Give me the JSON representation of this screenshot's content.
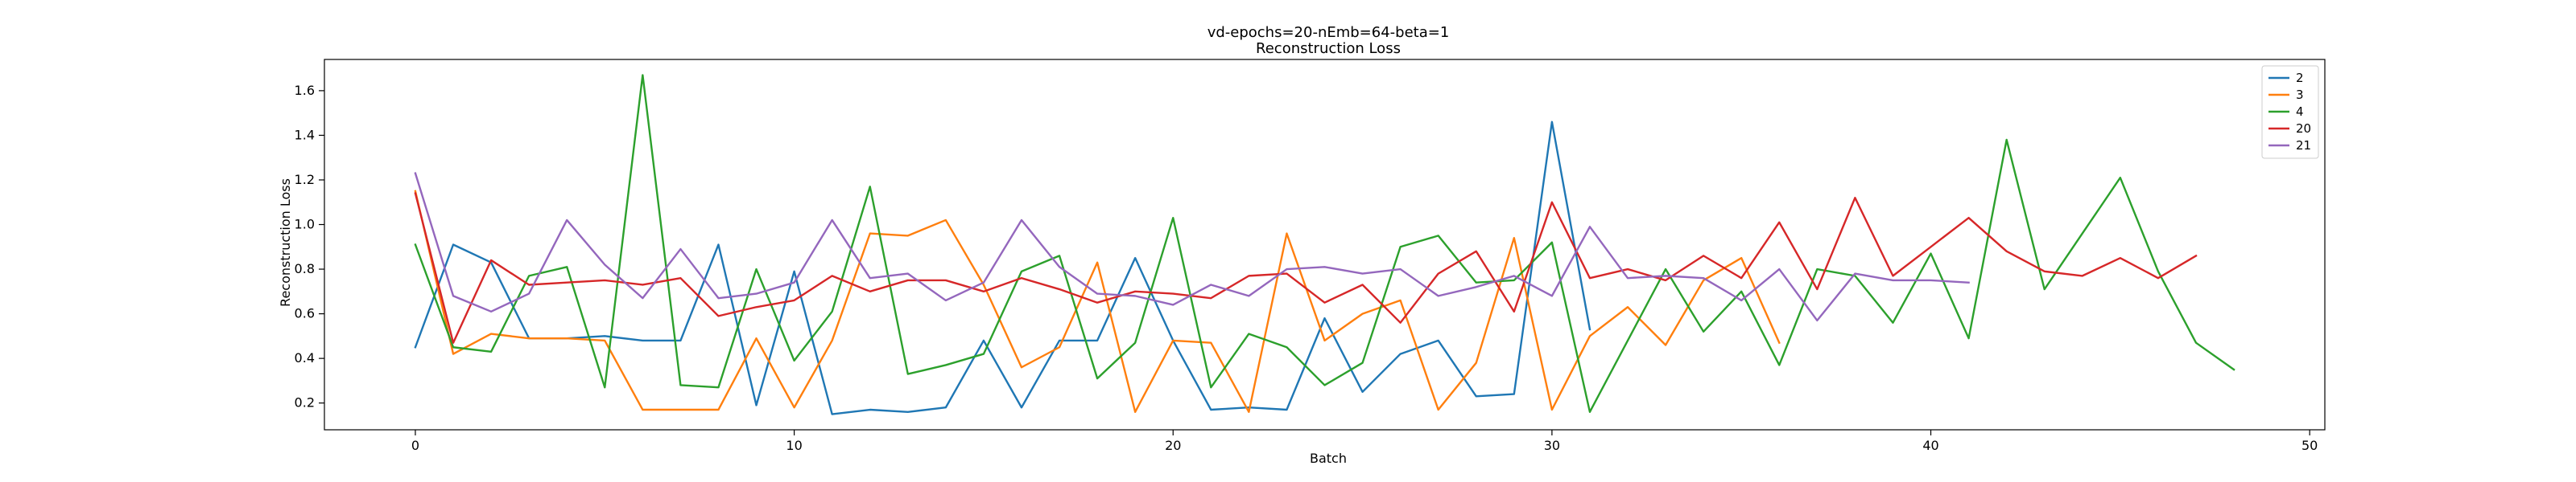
{
  "chart_data": {
    "type": "line",
    "title": "vd-epochs=20-nEmb=64-beta=1",
    "subtitle": "Reconstruction Loss",
    "xlabel": "Batch",
    "ylabel": "Reconstruction Loss",
    "xlim": [
      -2.4,
      50.4
    ],
    "ylim": [
      0.08,
      1.74
    ],
    "xticks": [
      0,
      10,
      20,
      30,
      40,
      50
    ],
    "yticks": [
      0.2,
      0.4,
      0.6,
      0.8,
      1.0,
      1.2,
      1.4,
      1.6
    ],
    "ytick_labels": [
      "0.2",
      "0.4",
      "0.6",
      "0.8",
      "1.0",
      "1.2",
      "1.4",
      "1.6"
    ],
    "grid": false,
    "legend_position": "top-right",
    "series": [
      {
        "name": "2",
        "color": "#1f77b4",
        "values": [
          0.45,
          0.91,
          0.83,
          0.49,
          0.49,
          0.5,
          0.48,
          0.48,
          0.91,
          0.19,
          0.79,
          0.15,
          0.17,
          0.16,
          0.18,
          0.48,
          0.18,
          0.48,
          0.48,
          0.85,
          0.48,
          0.17,
          0.18,
          0.17,
          0.58,
          0.25,
          0.42,
          0.48,
          0.23,
          0.24,
          1.46,
          0.53
        ]
      },
      {
        "name": "3",
        "color": "#ff7f0e",
        "values": [
          1.15,
          0.42,
          0.51,
          0.49,
          0.49,
          0.48,
          0.17,
          0.17,
          0.17,
          0.49,
          0.18,
          0.48,
          0.96,
          0.95,
          1.02,
          0.73,
          0.36,
          0.45,
          0.83,
          0.16,
          0.48,
          0.47,
          0.16,
          0.96,
          0.48,
          0.6,
          0.66,
          0.17,
          0.38,
          0.94,
          0.17,
          0.5,
          0.63,
          0.46,
          0.75,
          0.85,
          0.47
        ]
      },
      {
        "name": "4",
        "color": "#2ca02c",
        "values": [
          0.91,
          0.45,
          0.43,
          0.77,
          0.81,
          0.27,
          1.67,
          0.28,
          0.27,
          0.8,
          0.39,
          0.61,
          1.17,
          0.33,
          0.37,
          0.42,
          0.79,
          0.86,
          0.31,
          0.47,
          1.03,
          0.27,
          0.51,
          0.45,
          0.28,
          0.38,
          0.9,
          0.95,
          0.74,
          0.75,
          0.92,
          0.16,
          0.48,
          0.8,
          0.52,
          0.7,
          0.37,
          0.8,
          0.77,
          0.56,
          0.87,
          0.49,
          1.38,
          0.71,
          0.96,
          1.21,
          0.79,
          0.47,
          0.35
        ]
      },
      {
        "name": "20",
        "color": "#d62728",
        "values": [
          1.14,
          0.47,
          0.84,
          0.73,
          0.74,
          0.75,
          0.73,
          0.76,
          0.59,
          0.63,
          0.66,
          0.77,
          0.7,
          0.75,
          0.75,
          0.7,
          0.76,
          0.71,
          0.65,
          0.7,
          0.69,
          0.67,
          0.77,
          0.78,
          0.65,
          0.73,
          0.56,
          0.78,
          0.88,
          0.61,
          1.1,
          0.76,
          0.8,
          0.75,
          0.86,
          0.76,
          1.01,
          0.71,
          1.12,
          0.77,
          0.9,
          1.03,
          0.88,
          0.79,
          0.77,
          0.85,
          0.76,
          0.86
        ]
      },
      {
        "name": "21",
        "color": "#9467bd",
        "values": [
          1.23,
          0.68,
          0.61,
          0.69,
          1.02,
          0.82,
          0.67,
          0.89,
          0.67,
          0.69,
          0.74,
          1.02,
          0.76,
          0.78,
          0.66,
          0.74,
          1.02,
          0.81,
          0.69,
          0.68,
          0.64,
          0.73,
          0.68,
          0.8,
          0.81,
          0.78,
          0.8,
          0.68,
          0.72,
          0.77,
          0.68,
          0.99,
          0.76,
          0.77,
          0.76,
          0.66,
          0.8,
          0.57,
          0.78,
          0.75,
          0.75,
          0.74
        ]
      }
    ]
  }
}
